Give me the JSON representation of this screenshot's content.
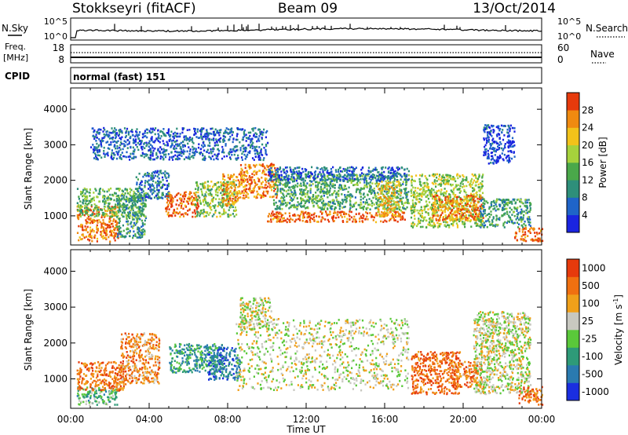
{
  "header": {
    "station": "Stokkseyri (fitACF)",
    "beam": "Beam 09",
    "date": "13/Oct/2014"
  },
  "strip_labels": {
    "nsky": "N.Sky",
    "nsky_hi": "10^5",
    "nsky_lo": "10^0",
    "nsearch": "N.Search",
    "nsearch_hi": "10^5",
    "nsearch_lo": "10^0",
    "freq_1": "Freq.",
    "freq_2": "[MHz]",
    "freq_hi": "18",
    "freq_lo": "8",
    "nave": "Nave",
    "nave_hi": "60",
    "nave_lo": "0",
    "cpid": "CPID",
    "cpid_mode": "normal (fast) 151"
  },
  "chart_data": [
    {
      "type": "heatmap",
      "name_ref": "power",
      "ylabel": "Slant Range [km]",
      "xlabel": "",
      "y_ticks": [
        "1000",
        "2000",
        "3000",
        "4000"
      ],
      "y_tick_values": [
        1000,
        2000,
        3000,
        4000
      ],
      "ylim": [
        180,
        4600
      ],
      "xlim_hours": [
        0,
        24
      ],
      "colorbar": {
        "label": "Power [dB]",
        "ticks": [
          "4",
          "8",
          "12",
          "16",
          "20",
          "24",
          "28"
        ],
        "tick_values": [
          4,
          8,
          12,
          16,
          20,
          24,
          28
        ],
        "range": [
          0,
          32
        ],
        "colors": [
          "#1a24e0",
          "#1f64c8",
          "#2e8f7a",
          "#4aa84a",
          "#a6d23c",
          "#f2c21a",
          "#f08a10",
          "#e63a0c"
        ]
      },
      "regions": [
        {
          "t0": 0.3,
          "t1": 2.4,
          "r0": 300,
          "r1": 1300,
          "level": 0.85
        },
        {
          "t0": 0.3,
          "t1": 3.8,
          "r0": 1000,
          "r1": 1800,
          "level": 0.45
        },
        {
          "t0": 2.3,
          "t1": 3.8,
          "r0": 400,
          "r1": 1600,
          "level": 0.35
        },
        {
          "t0": 3.3,
          "t1": 5.0,
          "r0": 1500,
          "r1": 2300,
          "level": 0.25
        },
        {
          "t0": 4.8,
          "t1": 6.5,
          "r0": 1000,
          "r1": 1700,
          "level": 0.88
        },
        {
          "t0": 6.3,
          "t1": 8.4,
          "r0": 1000,
          "r1": 2000,
          "level": 0.5
        },
        {
          "t0": 7.7,
          "t1": 8.6,
          "r0": 1300,
          "r1": 2200,
          "level": 0.78
        },
        {
          "t0": 8.6,
          "t1": 10.5,
          "r0": 1500,
          "r1": 2500,
          "level": 0.8
        },
        {
          "t0": 10.0,
          "t1": 17.0,
          "r0": 850,
          "r1": 1150,
          "level": 0.9
        },
        {
          "t0": 10.3,
          "t1": 17.2,
          "r0": 1200,
          "r1": 2200,
          "level": 0.4
        },
        {
          "t0": 10.0,
          "t1": 17.2,
          "r0": 2000,
          "r1": 2400,
          "level": 0.2
        },
        {
          "t0": 15.6,
          "t1": 16.8,
          "r0": 1000,
          "r1": 2000,
          "level": 0.7
        },
        {
          "t0": 17.3,
          "t1": 21.0,
          "r0": 700,
          "r1": 2200,
          "level": 0.55
        },
        {
          "t0": 18.4,
          "t1": 21.0,
          "r0": 900,
          "r1": 1600,
          "level": 0.82
        },
        {
          "t0": 20.8,
          "t1": 23.4,
          "r0": 700,
          "r1": 1500,
          "level": 0.35
        },
        {
          "t0": 22.6,
          "t1": 24.0,
          "r0": 300,
          "r1": 700,
          "level": 0.9
        },
        {
          "t0": 21.0,
          "t1": 22.6,
          "r0": 2500,
          "r1": 3600,
          "level": 0.1
        },
        {
          "t0": 1.0,
          "t1": 10.0,
          "r0": 2600,
          "r1": 3500,
          "level": 0.2
        }
      ]
    },
    {
      "type": "heatmap",
      "name_ref": "velocity",
      "ylabel": "Slant Range [km]",
      "xlabel": "Time UT",
      "y_ticks": [
        "1000",
        "2000",
        "3000",
        "4000"
      ],
      "y_tick_values": [
        1000,
        2000,
        3000,
        4000
      ],
      "ylim": [
        180,
        4600
      ],
      "xlim_hours": [
        0,
        24
      ],
      "x_ticks": [
        "00:00",
        "04:00",
        "08:00",
        "12:00",
        "16:00",
        "20:00",
        "00:00"
      ],
      "x_tick_values": [
        0,
        4,
        8,
        12,
        16,
        20,
        24
      ],
      "colorbar": {
        "label": "Velocity [m s",
        "label_sup": "-1",
        "label_end": "]",
        "ticks": [
          "1000",
          "500",
          "100",
          "25",
          "-25",
          "-100",
          "-500",
          "-1000"
        ],
        "colors": [
          "#1a2ee0",
          "#2a7ab0",
          "#2e9a78",
          "#5ac83a",
          "#c8c8c0",
          "#f0a01a",
          "#f07010",
          "#e63a0c"
        ]
      },
      "regions": [
        {
          "t0": 0.3,
          "t1": 2.4,
          "r0": 300,
          "r1": 800,
          "level": 0.4
        },
        {
          "t0": 0.3,
          "t1": 2.8,
          "r0": 700,
          "r1": 1500,
          "level": 0.8
        },
        {
          "t0": 2.5,
          "t1": 4.5,
          "r0": 900,
          "r1": 2300,
          "level": 0.75
        },
        {
          "t0": 5.0,
          "t1": 7.8,
          "r0": 1200,
          "r1": 2000,
          "level": 0.3
        },
        {
          "t0": 7.0,
          "t1": 8.6,
          "r0": 1000,
          "r1": 1900,
          "level": 0.2
        },
        {
          "t0": 8.4,
          "t1": 17.2,
          "r0": 700,
          "r1": 2700,
          "level": 0.55
        },
        {
          "t0": 8.6,
          "t1": 10.2,
          "r0": 2400,
          "r1": 3300,
          "level": 0.55
        },
        {
          "t0": 17.3,
          "t1": 19.8,
          "r0": 600,
          "r1": 1800,
          "level": 0.85
        },
        {
          "t0": 19.5,
          "t1": 21.0,
          "r0": 800,
          "r1": 1500,
          "level": 0.78
        },
        {
          "t0": 20.5,
          "t1": 23.4,
          "r0": 600,
          "r1": 2900,
          "level": 0.55
        },
        {
          "t0": 22.8,
          "t1": 24.0,
          "r0": 300,
          "r1": 800,
          "level": 0.8
        }
      ]
    }
  ]
}
